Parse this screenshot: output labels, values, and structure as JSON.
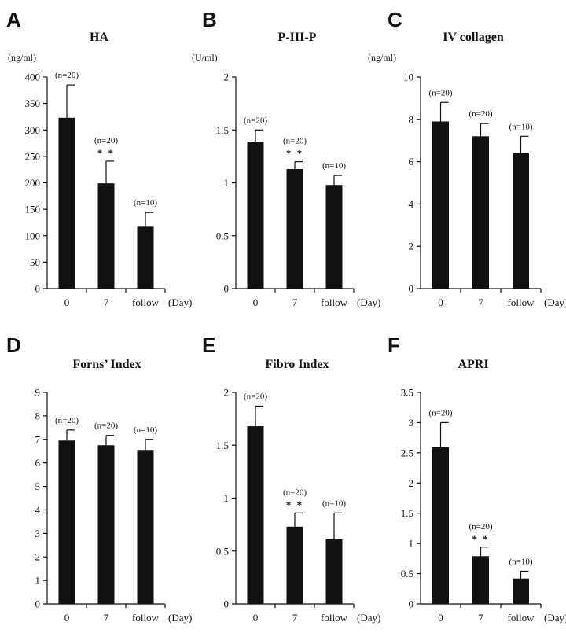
{
  "colors": {
    "bar": "#111111",
    "axis": "#111111",
    "background": "#ffffff"
  },
  "chart_data": [
    {
      "type": "bar",
      "panel": "A",
      "title": "HA",
      "ylabel": "(ng/ml)",
      "xlabel": "(Day)",
      "categories": [
        "0",
        "7",
        "follow"
      ],
      "values": [
        323,
        199,
        117
      ],
      "errors": [
        62,
        42,
        27
      ],
      "n_labels": [
        "(n=20)",
        "(n=20)",
        "(n=10)"
      ],
      "significance": [
        "",
        "* *",
        ""
      ],
      "ylim": [
        0,
        400
      ],
      "yticks": [
        0,
        50,
        100,
        150,
        200,
        250,
        300,
        350,
        400
      ],
      "ytick_labels": [
        "0",
        "50",
        "100",
        "150",
        "200",
        "250",
        "300",
        "350",
        "400"
      ]
    },
    {
      "type": "bar",
      "panel": "B",
      "title": "P-III-P",
      "ylabel": "(U/ml)",
      "xlabel": "(Day)",
      "categories": [
        "0",
        "7",
        "follow"
      ],
      "values": [
        1.39,
        1.13,
        0.98
      ],
      "errors": [
        0.11,
        0.07,
        0.09
      ],
      "n_labels": [
        "(n=20)",
        "(n=20)",
        "(n=10)"
      ],
      "significance": [
        "",
        "* *",
        ""
      ],
      "ylim": [
        0,
        2
      ],
      "yticks": [
        0,
        0.5,
        1,
        1.5,
        2
      ],
      "ytick_labels": [
        "0",
        "0.5",
        "1",
        "1.5",
        "2"
      ]
    },
    {
      "type": "bar",
      "panel": "C",
      "title": "IV collagen",
      "ylabel": "(ng/ml)",
      "xlabel": "(Day)",
      "categories": [
        "0",
        "7",
        "follow"
      ],
      "values": [
        7.9,
        7.2,
        6.4
      ],
      "errors": [
        0.9,
        0.6,
        0.8
      ],
      "n_labels": [
        "(n=20)",
        "(n=20)",
        "(n=10)"
      ],
      "significance": [
        "",
        "",
        ""
      ],
      "ylim": [
        0,
        10
      ],
      "yticks": [
        0,
        2,
        4,
        6,
        8,
        10
      ],
      "ytick_labels": [
        "0",
        "2",
        "4",
        "6",
        "8",
        "10"
      ]
    },
    {
      "type": "bar",
      "panel": "D",
      "title": "Forns’ Index",
      "ylabel": "",
      "xlabel": "(Day)",
      "categories": [
        "0",
        "7",
        "follow"
      ],
      "values": [
        6.95,
        6.75,
        6.55
      ],
      "errors": [
        0.45,
        0.42,
        0.45
      ],
      "n_labels": [
        "(n=20)",
        "(n=20)",
        "(n=10)"
      ],
      "significance": [
        "",
        "",
        ""
      ],
      "ylim": [
        0,
        9
      ],
      "yticks": [
        0,
        1,
        2,
        3,
        4,
        5,
        6,
        7,
        8,
        9
      ],
      "ytick_labels": [
        "0",
        "1",
        "2",
        "3",
        "4",
        "5",
        "6",
        "7",
        "8",
        "9"
      ]
    },
    {
      "type": "bar",
      "panel": "E",
      "title": "Fibro Index",
      "ylabel": "",
      "xlabel": "(Day)",
      "categories": [
        "0",
        "7",
        "follow"
      ],
      "values": [
        1.68,
        0.73,
        0.61
      ],
      "errors": [
        0.19,
        0.13,
        0.25
      ],
      "n_labels": [
        "(n=20)",
        "(n=20)",
        "(n=10)"
      ],
      "significance": [
        "",
        "* *",
        ""
      ],
      "ylim": [
        0,
        2
      ],
      "yticks": [
        0,
        0.5,
        1,
        1.5,
        2
      ],
      "ytick_labels": [
        "0",
        "0.5",
        "1",
        "1.5",
        "2"
      ]
    },
    {
      "type": "bar",
      "panel": "F",
      "title": "APRI",
      "ylabel": "",
      "xlabel": "(Day)",
      "categories": [
        "0",
        "7",
        "follow"
      ],
      "values": [
        2.59,
        0.79,
        0.42
      ],
      "errors": [
        0.41,
        0.15,
        0.12
      ],
      "n_labels": [
        "(n=20)",
        "(n=20)",
        "(n=10)"
      ],
      "significance": [
        "",
        "* *",
        ""
      ],
      "ylim": [
        0,
        3.5
      ],
      "yticks": [
        0,
        0.5,
        1,
        1.5,
        2,
        2.5,
        3,
        3.5
      ],
      "ytick_labels": [
        "0",
        "0.5",
        "1",
        "1.5",
        "2",
        "2.5",
        "3",
        "3.5"
      ]
    }
  ]
}
